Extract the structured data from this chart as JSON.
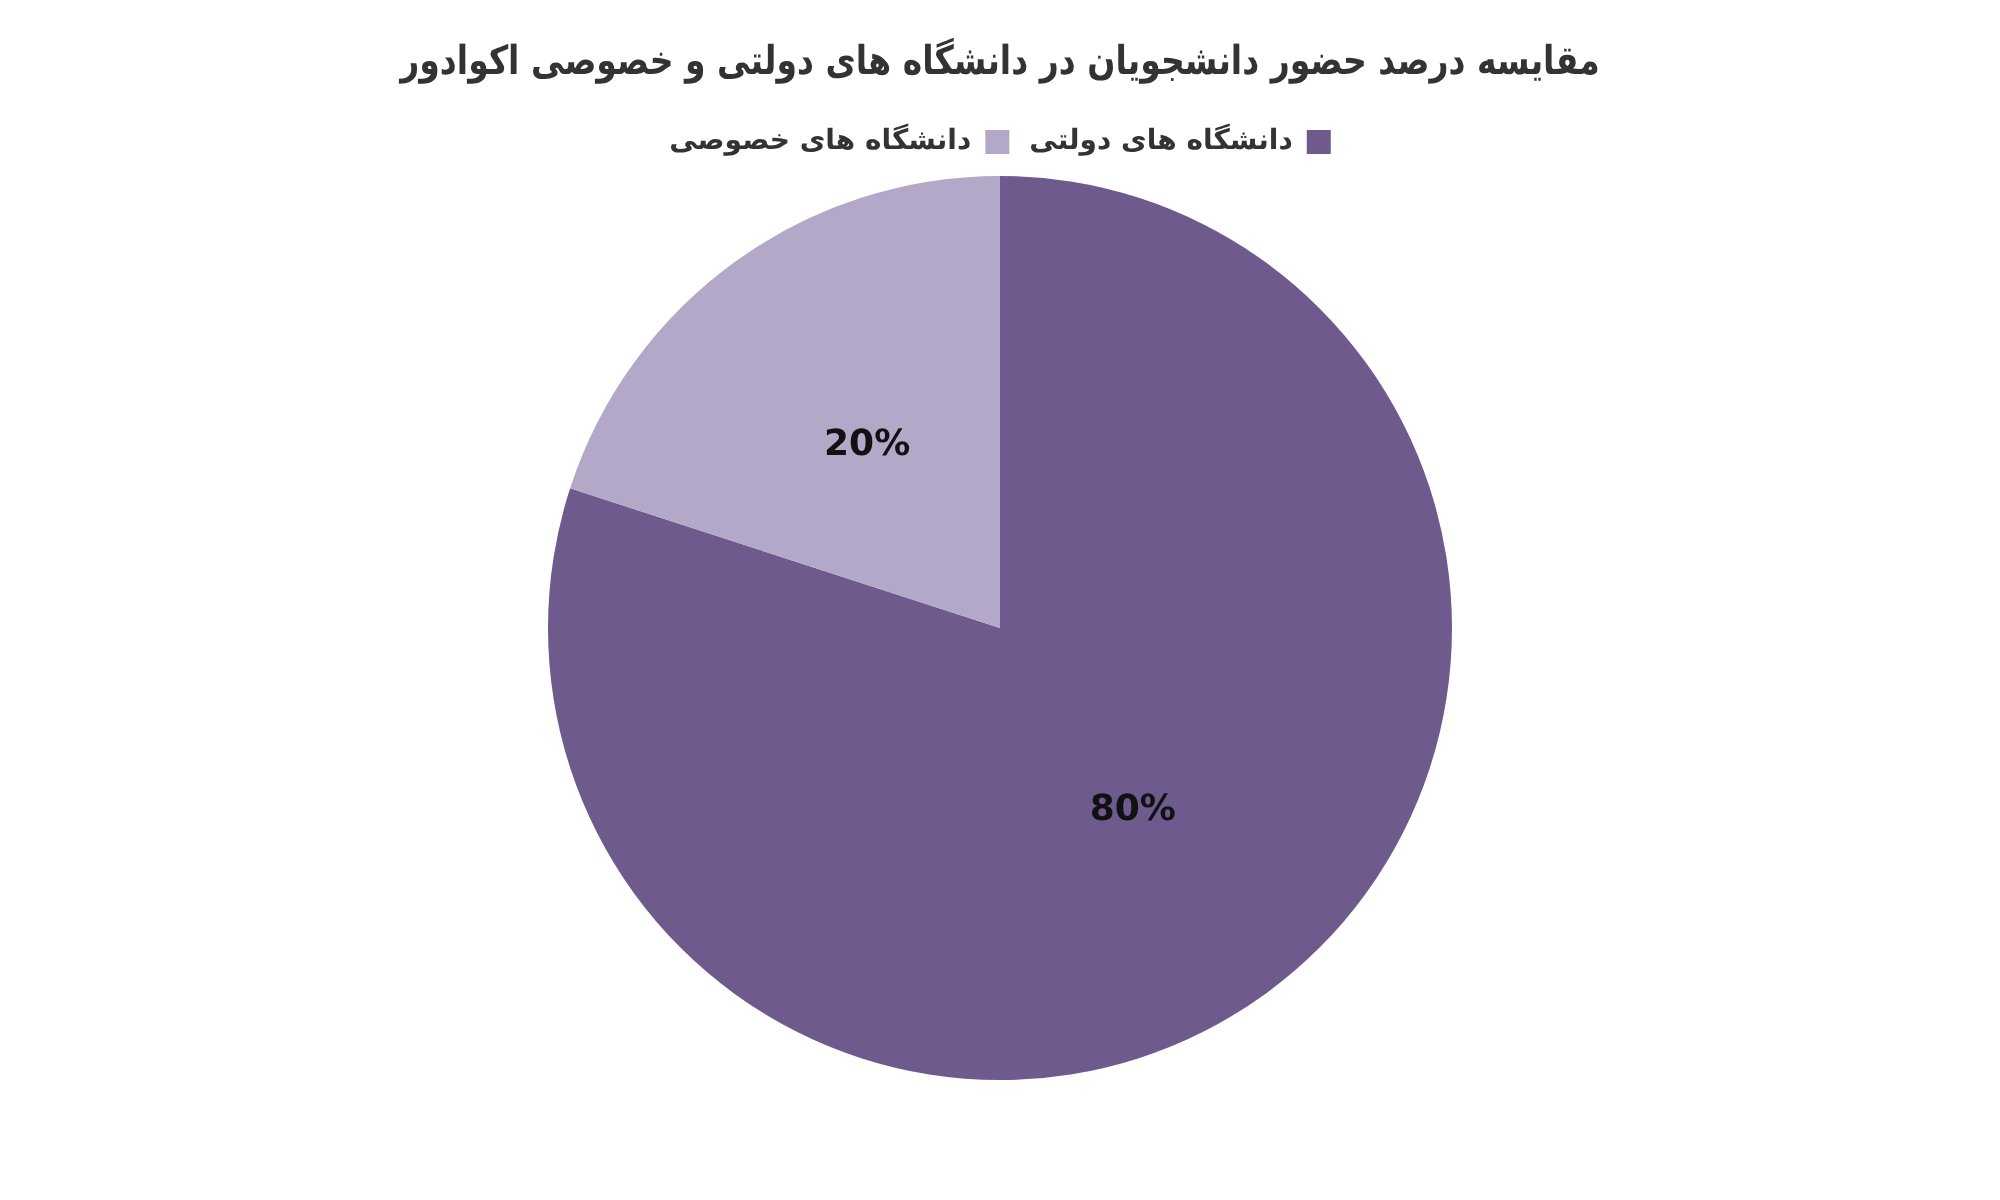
{
  "chart_data": {
    "type": "pie",
    "title": "مقایسه درصد حضور دانشجویان در دانشگاه های دولتی و خصوصی اکوادور",
    "categories": [
      "دانشگاه های دولتی",
      "دانشگاه های خصوصی"
    ],
    "values": [
      80,
      20
    ],
    "colors": [
      "#6f5a8e",
      "#b3a8c7"
    ],
    "value_labels": [
      "80%",
      "20%"
    ],
    "legend": "top"
  }
}
